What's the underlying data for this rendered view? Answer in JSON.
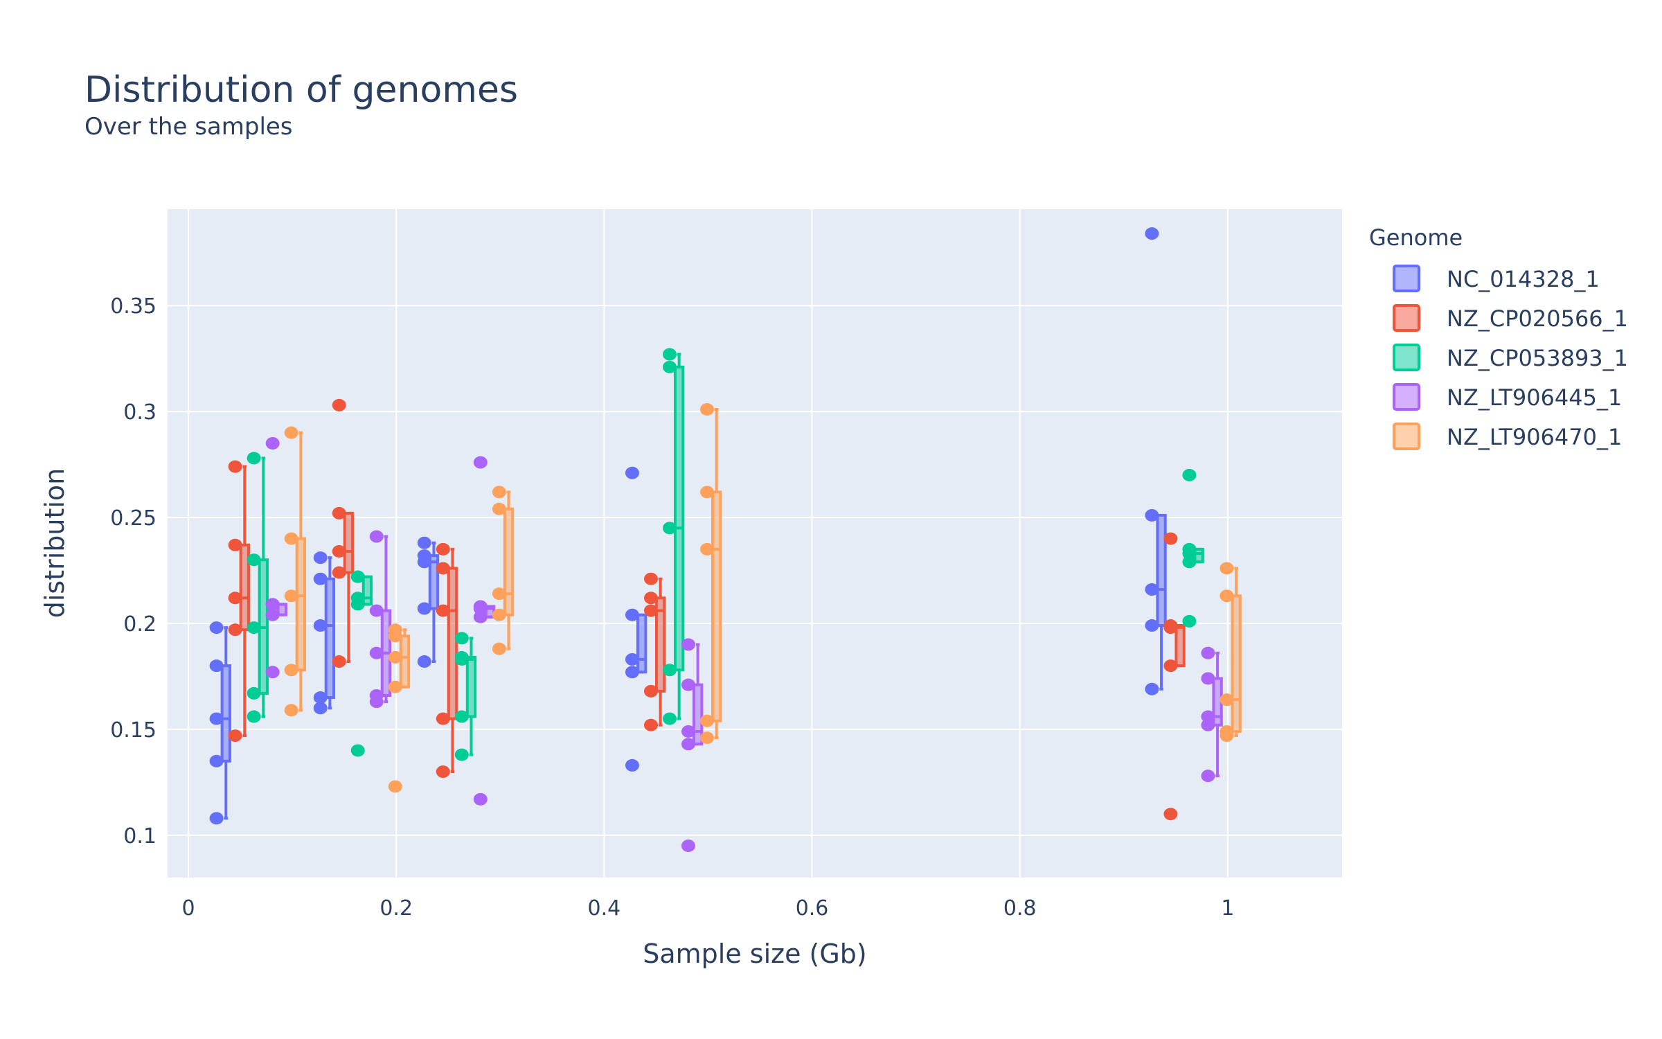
{
  "chart_data": {
    "type": "box",
    "title": "Distribution of genomes",
    "subtitle": "Over the samples",
    "xlabel": "Sample size (Gb)",
    "ylabel": "distribution",
    "xlim": [
      -0.02,
      1.11
    ],
    "ylim": [
      0.08,
      0.3955
    ],
    "xticks": [
      {
        "value": 0,
        "label": "0"
      },
      {
        "value": 0.2,
        "label": "0.2"
      },
      {
        "value": 0.4,
        "label": "0.4"
      },
      {
        "value": 0.6,
        "label": "0.6"
      },
      {
        "value": 0.8,
        "label": "0.8"
      },
      {
        "value": 1,
        "label": "1"
      }
    ],
    "yticks": [
      {
        "value": 0.1,
        "label": "0.1"
      },
      {
        "value": 0.15,
        "label": "0.15"
      },
      {
        "value": 0.2,
        "label": "0.2"
      },
      {
        "value": 0.25,
        "label": "0.25"
      },
      {
        "value": 0.3,
        "label": "0.3"
      },
      {
        "value": 0.35,
        "label": "0.35"
      }
    ],
    "grid": true,
    "legend": {
      "title": "Genome",
      "position": "right"
    },
    "series": [
      {
        "name": "NC_014328_1",
        "color": "#636efa",
        "groups": [
          {
            "x": 0.07,
            "points": [
              0.108,
              0.135,
              0.155,
              0.18,
              0.198
            ]
          },
          {
            "x": 0.17,
            "points": [
              0.16,
              0.165,
              0.199,
              0.221,
              0.231
            ]
          },
          {
            "x": 0.27,
            "points": [
              0.182,
              0.207,
              0.229,
              0.232,
              0.238
            ]
          },
          {
            "x": 0.47,
            "points": [
              0.133,
              0.177,
              0.183,
              0.204,
              0.271
            ]
          },
          {
            "x": 0.97,
            "points": [
              0.169,
              0.199,
              0.216,
              0.251,
              0.384
            ]
          }
        ]
      },
      {
        "name": "NZ_CP020566_1",
        "color": "#EF553B",
        "groups": [
          {
            "x": 0.07,
            "points": [
              0.147,
              0.197,
              0.212,
              0.237,
              0.274
            ]
          },
          {
            "x": 0.17,
            "points": [
              0.182,
              0.224,
              0.234,
              0.252,
              0.303
            ]
          },
          {
            "x": 0.27,
            "points": [
              0.13,
              0.155,
              0.206,
              0.226,
              0.235
            ]
          },
          {
            "x": 0.47,
            "points": [
              0.152,
              0.168,
              0.206,
              0.212,
              0.221
            ]
          },
          {
            "x": 0.97,
            "points": [
              0.11,
              0.18,
              0.198,
              0.199,
              0.24
            ]
          }
        ]
      },
      {
        "name": "NZ_CP053893_1",
        "color": "#00cc96",
        "groups": [
          {
            "x": 0.07,
            "points": [
              0.156,
              0.167,
              0.198,
              0.23,
              0.278
            ]
          },
          {
            "x": 0.17,
            "points": [
              0.14,
              0.209,
              0.212,
              0.222,
              0.222
            ]
          },
          {
            "x": 0.27,
            "points": [
              0.138,
              0.156,
              0.183,
              0.184,
              0.193
            ]
          },
          {
            "x": 0.47,
            "points": [
              0.155,
              0.178,
              0.245,
              0.321,
              0.327
            ]
          },
          {
            "x": 0.97,
            "points": [
              0.201,
              0.229,
              0.233,
              0.235,
              0.27
            ]
          }
        ]
      },
      {
        "name": "NZ_LT906445_1",
        "color": "#ab63fa",
        "groups": [
          {
            "x": 0.07,
            "points": [
              0.177,
              0.204,
              0.209,
              0.209,
              0.285
            ]
          },
          {
            "x": 0.17,
            "points": [
              0.163,
              0.166,
              0.186,
              0.206,
              0.241
            ]
          },
          {
            "x": 0.27,
            "points": [
              0.117,
              0.203,
              0.207,
              0.208,
              0.276
            ]
          },
          {
            "x": 0.47,
            "points": [
              0.095,
              0.143,
              0.149,
              0.171,
              0.19
            ]
          },
          {
            "x": 0.97,
            "points": [
              0.128,
              0.152,
              0.156,
              0.174,
              0.186
            ]
          }
        ]
      },
      {
        "name": "NZ_LT906470_1",
        "color": "#FFA15A",
        "groups": [
          {
            "x": 0.07,
            "points": [
              0.159,
              0.178,
              0.213,
              0.24,
              0.29
            ]
          },
          {
            "x": 0.17,
            "points": [
              0.123,
              0.17,
              0.184,
              0.194,
              0.197
            ]
          },
          {
            "x": 0.27,
            "points": [
              0.188,
              0.204,
              0.214,
              0.254,
              0.262
            ]
          },
          {
            "x": 0.47,
            "points": [
              0.146,
              0.154,
              0.235,
              0.262,
              0.301
            ]
          },
          {
            "x": 0.97,
            "points": [
              0.147,
              0.149,
              0.164,
              0.213,
              0.226
            ]
          }
        ]
      }
    ]
  }
}
